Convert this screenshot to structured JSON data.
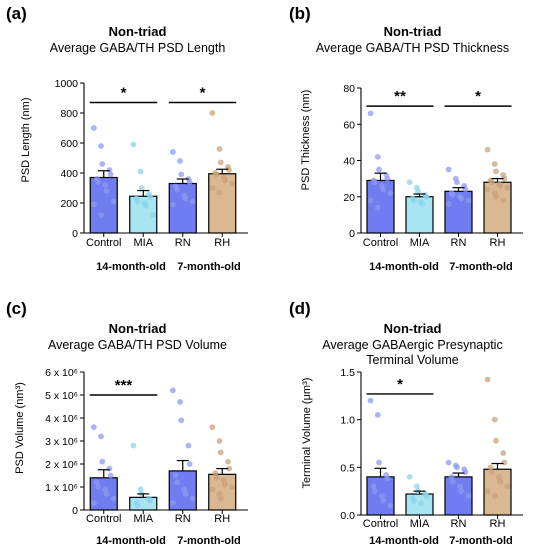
{
  "panels": [
    {
      "letter": "(a)",
      "title": "Non-triad",
      "subtitle": [
        "Average GABA/TH PSD Length"
      ],
      "ylabel": "PSD Length (nm)",
      "groups": [
        "14-month-old",
        "7-month-old"
      ],
      "chart_data": {
        "type": "bar",
        "categories": [
          "Control",
          "MIA",
          "RN",
          "RH"
        ],
        "ylim": [
          0,
          1000
        ],
        "yticks": [
          {
            "v": 0,
            "t": "0"
          },
          {
            "v": 200,
            "t": "200"
          },
          {
            "v": 400,
            "t": "400"
          },
          {
            "v": 600,
            "t": "600"
          },
          {
            "v": 800,
            "t": "800"
          },
          {
            "v": 1000,
            "t": "1000"
          }
        ],
        "values": [
          370,
          245,
          330,
          395
        ],
        "errors": [
          45,
          38,
          30,
          30
        ],
        "points": [
          [
            700,
            580,
            460,
            420,
            390,
            360,
            340,
            320,
            280,
            210,
            190,
            120
          ],
          [
            590,
            410,
            300,
            260,
            240,
            230,
            210,
            200,
            180,
            120
          ],
          [
            540,
            480,
            390,
            360,
            340,
            310,
            290,
            250,
            230,
            210,
            190
          ],
          [
            800,
            560,
            470,
            440,
            420,
            400,
            390,
            370,
            350,
            330,
            300,
            270
          ]
        ],
        "significance": [
          {
            "from": 0,
            "to": 1,
            "label": "*",
            "y": 870
          },
          {
            "from": 2,
            "to": 3,
            "label": "*",
            "y": 870
          }
        ]
      }
    },
    {
      "letter": "(b)",
      "title": "Non-triad",
      "subtitle": [
        "Average GABA/TH PSD Thickness"
      ],
      "ylabel": "PSD Thickness (nm)",
      "groups": [
        "14-month-old",
        "7-month-old"
      ],
      "chart_data": {
        "type": "bar",
        "categories": [
          "Control",
          "MIA",
          "RN",
          "RH"
        ],
        "ylim": [
          0,
          80
        ],
        "yticks": [
          {
            "v": 0,
            "t": "0"
          },
          {
            "v": 20,
            "t": "20"
          },
          {
            "v": 40,
            "t": "40"
          },
          {
            "v": 60,
            "t": "60"
          },
          {
            "v": 80,
            "t": "80"
          }
        ],
        "values": [
          29,
          20,
          23,
          28
        ],
        "errors": [
          4,
          1.5,
          2,
          2
        ],
        "points": [
          [
            66,
            42,
            35,
            32,
            30,
            29,
            28,
            26,
            24,
            22,
            18,
            14
          ],
          [
            28,
            25,
            23,
            21,
            20,
            19,
            18,
            17,
            16
          ],
          [
            35,
            30,
            28,
            26,
            24,
            22,
            21,
            20,
            19,
            18,
            16
          ],
          [
            46,
            38,
            34,
            32,
            30,
            29,
            28,
            27,
            26,
            25,
            24,
            22,
            20,
            18
          ]
        ],
        "significance": [
          {
            "from": 0,
            "to": 1,
            "label": "**",
            "y": 70
          },
          {
            "from": 2,
            "to": 3,
            "label": "*",
            "y": 70
          }
        ]
      }
    },
    {
      "letter": "(c)",
      "title": "Non-triad",
      "subtitle": [
        "Average GABA/TH PSD Volume"
      ],
      "ylabel": "PSD Volume (nm³)",
      "groups": [
        "14-month-old",
        "7-month-old"
      ],
      "chart_data": {
        "type": "bar",
        "categories": [
          "Control",
          "MIA",
          "RN",
          "RH"
        ],
        "ylim": [
          0,
          6000000
        ],
        "yticks": [
          {
            "v": 0,
            "t": "0"
          },
          {
            "v": 1000000,
            "t": "1 x 10⁶"
          },
          {
            "v": 2000000,
            "t": "2 x 10⁶"
          },
          {
            "v": 3000000,
            "t": "3 x 10⁶"
          },
          {
            "v": 4000000,
            "t": "4 x 10⁶"
          },
          {
            "v": 5000000,
            "t": "5 x 10⁶"
          },
          {
            "v": 6000000,
            "t": "6 x 10⁶"
          }
        ],
        "values": [
          1400000,
          550000,
          1700000,
          1550000
        ],
        "errors": [
          350000,
          150000,
          450000,
          250000
        ],
        "points": [
          [
            3600000,
            3200000,
            2100000,
            1800000,
            1500000,
            1200000,
            1000000,
            900000,
            700000,
            500000,
            300000
          ],
          [
            2800000,
            900000,
            700000,
            500000,
            400000,
            300000,
            200000
          ],
          [
            5200000,
            4700000,
            3900000,
            2800000,
            2000000,
            1500000,
            1200000,
            900000,
            700000,
            500000,
            300000
          ],
          [
            3600000,
            3000000,
            2500000,
            2100000,
            1800000,
            1600000,
            1400000,
            1300000,
            1100000,
            1000000,
            900000,
            700000,
            500000
          ]
        ],
        "significance": [
          {
            "from": 0,
            "to": 1,
            "label": "***",
            "y": 5000000
          }
        ]
      }
    },
    {
      "letter": "(d)",
      "title": "Non-triad",
      "subtitle": [
        "Average GABAergic Presynaptic",
        "Terminal Volume"
      ],
      "ylabel": "Terminal Volume (μm³)",
      "groups": [
        "14-month-old",
        "7-month-old"
      ],
      "chart_data": {
        "type": "bar",
        "categories": [
          "Control",
          "MIA",
          "RN",
          "RH"
        ],
        "ylim": [
          0,
          1.5
        ],
        "yticks": [
          {
            "v": 0,
            "t": "0.0"
          },
          {
            "v": 0.5,
            "t": "0.5"
          },
          {
            "v": 1.0,
            "t": "1.0"
          },
          {
            "v": 1.5,
            "t": "1.5"
          }
        ],
        "values": [
          0.4,
          0.22,
          0.4,
          0.48
        ],
        "errors": [
          0.09,
          0.03,
          0.04,
          0.06
        ],
        "points": [
          [
            1.2,
            1.05,
            0.55,
            0.42,
            0.38,
            0.3,
            0.25,
            0.2,
            0.15,
            0.1
          ],
          [
            0.4,
            0.3,
            0.25,
            0.22,
            0.2,
            0.18,
            0.15,
            0.12
          ],
          [
            0.55,
            0.52,
            0.5,
            0.48,
            0.45,
            0.4,
            0.35,
            0.3,
            0.25,
            0.2
          ],
          [
            1.42,
            1.0,
            0.78,
            0.65,
            0.55,
            0.5,
            0.45,
            0.4,
            0.35,
            0.3,
            0.25,
            0.2
          ]
        ],
        "significance": [
          {
            "from": 0,
            "to": 1,
            "label": "*",
            "y": 1.27
          }
        ]
      }
    }
  ],
  "colors": {
    "bars": [
      "#6f7df0",
      "#a8e4f2",
      "#6f7df0",
      "#d9b892"
    ],
    "dots": [
      "#8f9af0",
      "#8ad4ea",
      "#8f9af0",
      "#c9a27a"
    ]
  }
}
